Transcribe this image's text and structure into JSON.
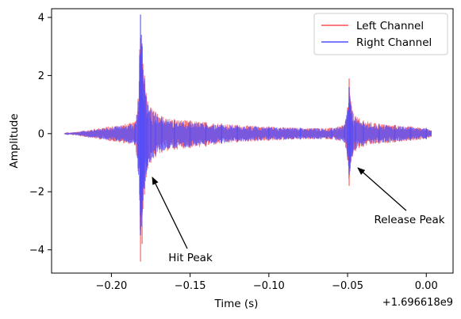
{
  "chart_data": {
    "type": "line",
    "xlabel": "Time (s)",
    "ylabel": "Amplitude",
    "x_offset_label": "+1.696618e9",
    "x_offset": 1696618000,
    "xlim": [
      -0.238,
      0.017
    ],
    "ylim": [
      -4.8,
      4.3
    ],
    "xticks": [
      -0.2,
      -0.15,
      -0.1,
      -0.05,
      0.0
    ],
    "xtick_labels": [
      "−0.20",
      "−0.15",
      "−0.10",
      "−0.05",
      "0.00"
    ],
    "yticks": [
      -4,
      -2,
      0,
      2,
      4
    ],
    "ytick_labels": [
      "−4",
      "−2",
      "0",
      "2",
      "4"
    ],
    "grid": false,
    "legend_position": "top-right",
    "series": [
      {
        "name": "Left Channel",
        "color": "#ff4d4d",
        "opacity": 0.75,
        "x": [
          -0.23,
          -0.185,
          -0.183,
          -0.182,
          -0.1815,
          -0.181,
          -0.1805,
          -0.18,
          -0.1795,
          -0.179,
          -0.178,
          -0.177,
          -0.175,
          -0.172,
          -0.168,
          -0.16,
          -0.15,
          -0.14,
          -0.13,
          -0.12,
          -0.1,
          -0.08,
          -0.06,
          -0.052,
          -0.05,
          -0.049,
          -0.0485,
          -0.048,
          -0.047,
          -0.045,
          -0.04,
          -0.03,
          -0.02,
          -0.01,
          0.0,
          0.003
        ],
        "y_upper": [
          0.0,
          0.4,
          1.2,
          2.9,
          3.3,
          2.6,
          3.1,
          2.4,
          1.8,
          2.0,
          1.4,
          1.1,
          0.9,
          0.75,
          0.6,
          0.5,
          0.45,
          0.4,
          0.35,
          0.3,
          0.25,
          0.2,
          0.2,
          0.3,
          0.9,
          1.9,
          1.3,
          1.1,
          0.8,
          0.6,
          0.45,
          0.35,
          0.3,
          0.25,
          0.2,
          0.1
        ],
        "y_lower": [
          0.0,
          -0.4,
          -1.3,
          -2.3,
          -4.4,
          -2.9,
          -3.8,
          -2.6,
          -1.9,
          -2.1,
          -1.5,
          -1.2,
          -1.0,
          -0.8,
          -0.65,
          -0.55,
          -0.5,
          -0.45,
          -0.35,
          -0.3,
          -0.25,
          -0.2,
          -0.2,
          -0.3,
          -0.9,
          -1.8,
          -1.3,
          -1.0,
          -0.8,
          -0.6,
          -0.45,
          -0.35,
          -0.3,
          -0.25,
          -0.2,
          -0.1
        ]
      },
      {
        "name": "Right Channel",
        "color": "#4d4dff",
        "opacity": 0.75,
        "x": [
          -0.23,
          -0.185,
          -0.183,
          -0.182,
          -0.1815,
          -0.181,
          -0.1805,
          -0.18,
          -0.1795,
          -0.179,
          -0.178,
          -0.177,
          -0.175,
          -0.172,
          -0.168,
          -0.16,
          -0.15,
          -0.14,
          -0.13,
          -0.12,
          -0.1,
          -0.08,
          -0.06,
          -0.052,
          -0.05,
          -0.049,
          -0.0485,
          -0.048,
          -0.047,
          -0.045,
          -0.04,
          -0.03,
          -0.02,
          -0.01,
          0.0,
          0.003
        ],
        "y_upper": [
          0.0,
          0.35,
          1.1,
          2.7,
          4.1,
          3.4,
          3.0,
          2.2,
          1.7,
          1.9,
          1.3,
          1.0,
          0.85,
          0.7,
          0.55,
          0.45,
          0.4,
          0.35,
          0.3,
          0.28,
          0.22,
          0.2,
          0.18,
          0.3,
          0.8,
          1.6,
          1.2,
          1.0,
          0.75,
          0.55,
          0.4,
          0.32,
          0.28,
          0.22,
          0.18,
          0.1
        ],
        "y_lower": [
          0.0,
          -0.35,
          -1.2,
          -2.1,
          -3.5,
          -3.2,
          -2.7,
          -2.3,
          -1.8,
          -1.9,
          -1.4,
          -1.1,
          -0.9,
          -0.75,
          -0.6,
          -0.5,
          -0.45,
          -0.4,
          -0.33,
          -0.28,
          -0.22,
          -0.2,
          -0.18,
          -0.3,
          -0.8,
          -1.4,
          -1.2,
          -0.95,
          -0.75,
          -0.55,
          -0.4,
          -0.32,
          -0.28,
          -0.22,
          -0.18,
          -0.1
        ]
      }
    ],
    "annotations": [
      {
        "text": "Hit Peak",
        "x": -0.1805,
        "y": -4.35
      },
      {
        "text": "Release Peak",
        "x": -0.0485,
        "y": -3.45
      }
    ]
  }
}
